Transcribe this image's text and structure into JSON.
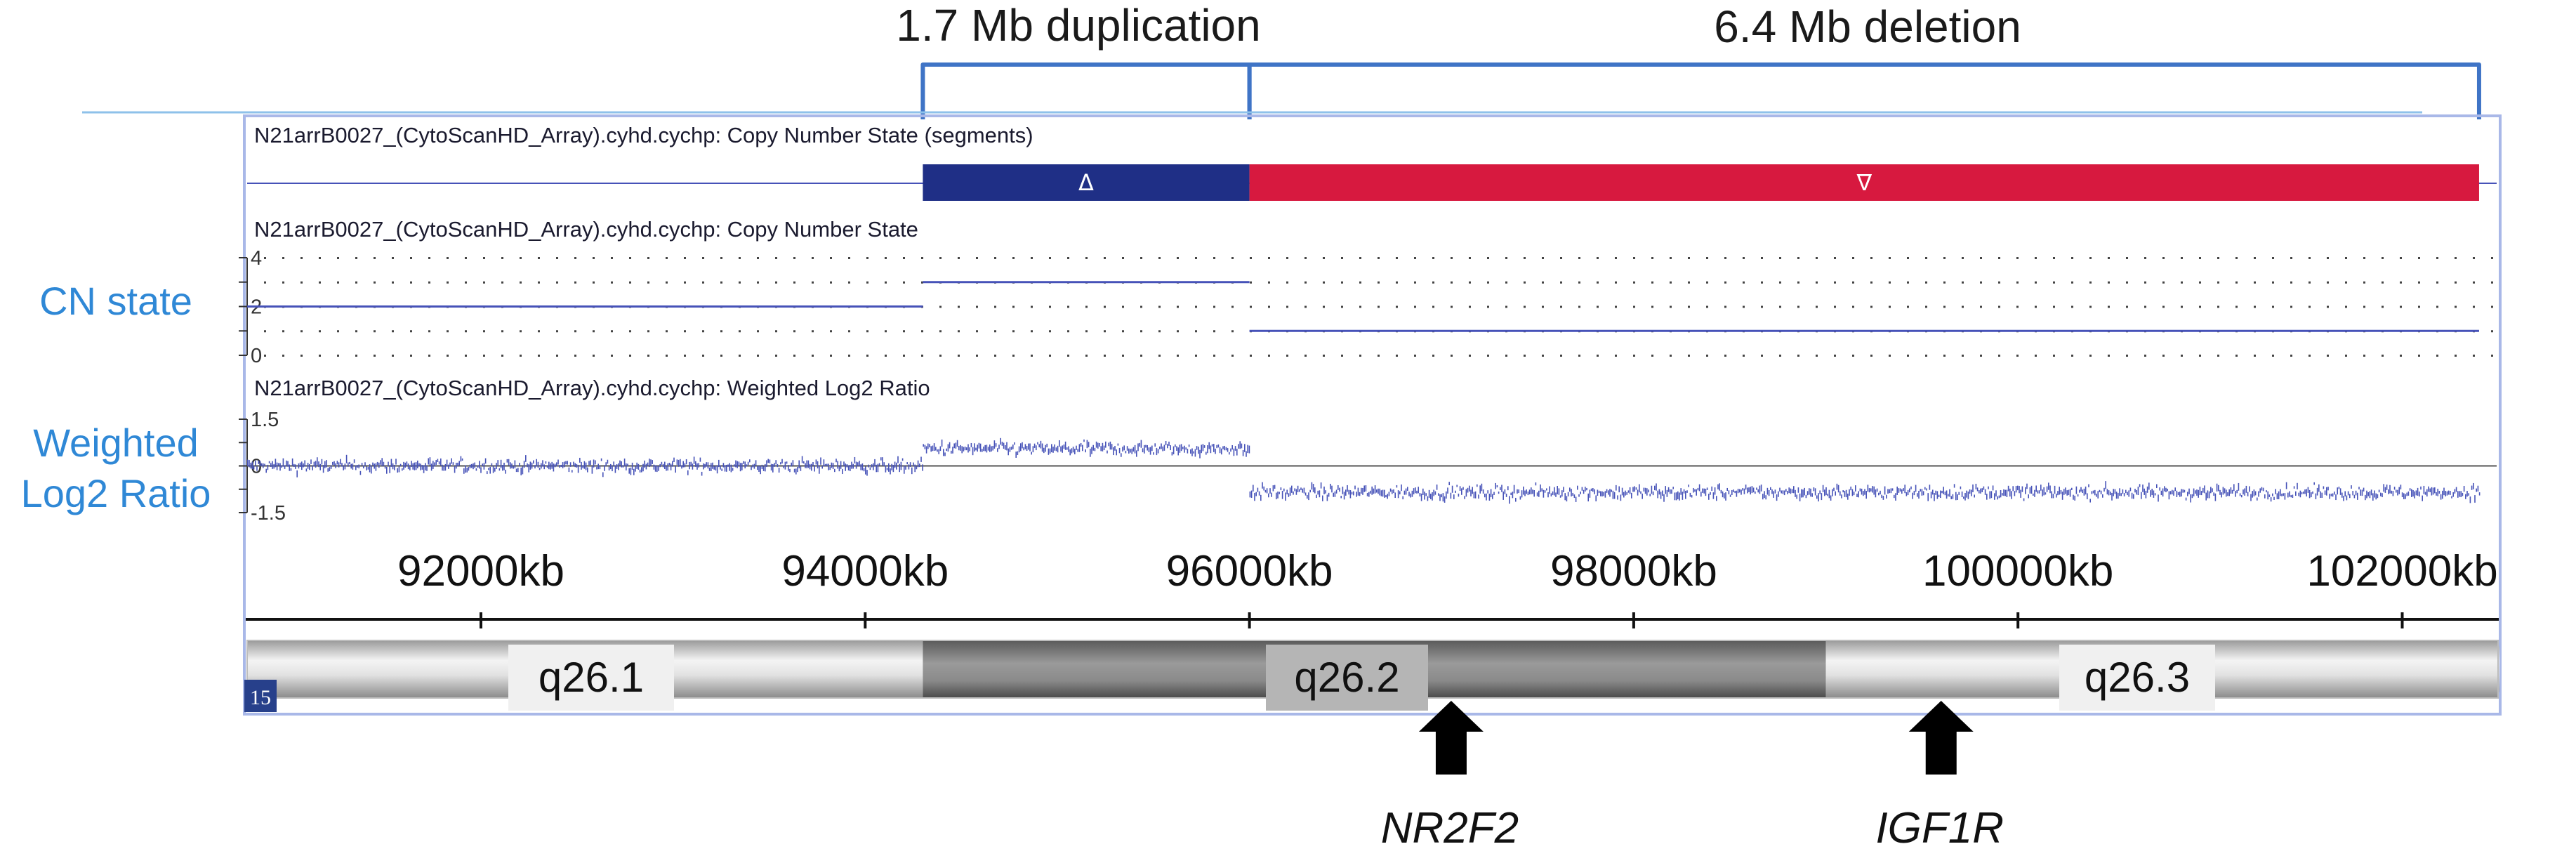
{
  "annotations": {
    "duplication": "1.7 Mb duplication",
    "deletion": "6.4 Mb deletion"
  },
  "tracks": {
    "segments_title": "N21arrB0027_(CytoScanHD_Array).cyhd.cychp: Copy Number State (segments)",
    "cn_title": "N21arrB0027_(CytoScanHD_Array).cyhd.cychp: Copy Number State",
    "log2_title": "N21arrB0027_(CytoScanHD_Array).cyhd.cychp: Weighted Log2 Ratio"
  },
  "side_labels": {
    "cn_state": "CN state",
    "log2_line1": "Weighted",
    "log2_line2": "Log2 Ratio"
  },
  "segment_symbols": {
    "gain": "Δ",
    "loss": "∇"
  },
  "chromosome_tag": "15",
  "bands": [
    "q26.1",
    "q26.2",
    "q26.3"
  ],
  "genes": [
    "NR2F2",
    "IGF1R"
  ],
  "colors": {
    "gain": "#1f2f86",
    "loss": "#d7193f",
    "signal": "#4652b8",
    "label_blue": "#2f88d6",
    "bracket": "#3f74c6"
  },
  "chart_data": {
    "type": "line",
    "x_unit": "kb",
    "x_range_kb": [
      88500,
      102500
    ],
    "x_ticks_kb": [
      92000,
      94000,
      96000,
      98000,
      100000,
      102000
    ],
    "x_tick_labels": [
      "92000kb",
      "94000kb",
      "96000kb",
      "98000kb",
      "100000kb",
      "102000kb"
    ],
    "segments": [
      {
        "type": "duplication",
        "start_kb": 94300,
        "end_kb": 96000,
        "size": "1.7 Mb"
      },
      {
        "type": "deletion",
        "start_kb": 96000,
        "end_kb": 102400,
        "size": "6.4 Mb"
      }
    ],
    "copy_number_state": {
      "y_range": [
        0,
        4
      ],
      "y_ticks": [
        "4",
        "2",
        "0"
      ],
      "steps": [
        {
          "start_kb": 88500,
          "end_kb": 94300,
          "cn": 2
        },
        {
          "start_kb": 94300,
          "end_kb": 96000,
          "cn": 3
        },
        {
          "start_kb": 96000,
          "end_kb": 102400,
          "cn": 1
        }
      ]
    },
    "weighted_log2_ratio": {
      "y_range": [
        -1.5,
        1.5
      ],
      "y_ticks": [
        "1.5",
        "0",
        "-1.5"
      ],
      "levels": [
        {
          "start_kb": 88500,
          "end_kb": 94300,
          "mean": 0.0
        },
        {
          "start_kb": 94300,
          "end_kb": 96000,
          "mean": 0.55
        },
        {
          "start_kb": 96000,
          "end_kb": 102400,
          "mean": -0.85
        }
      ]
    },
    "cytobands": [
      {
        "name": "q26.1",
        "start_kb": 88500,
        "end_kb": 94300,
        "stain": "light"
      },
      {
        "name": "q26.2",
        "start_kb": 94300,
        "end_kb": 99000,
        "stain": "dark"
      },
      {
        "name": "q26.3",
        "start_kb": 99000,
        "end_kb": 102500,
        "stain": "light"
      }
    ],
    "genes": [
      {
        "name": "NR2F2",
        "position_kb": 97050
      },
      {
        "name": "IGF1R",
        "position_kb": 99600
      }
    ]
  }
}
